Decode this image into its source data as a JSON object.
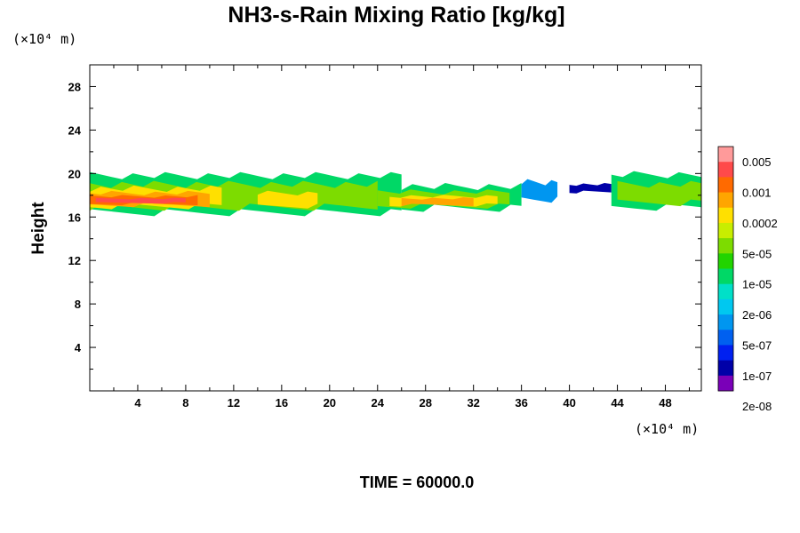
{
  "chart_data": {
    "type": "heatmap",
    "title": "NH3-s-Rain Mixing Ratio [kg/kg]",
    "ylabel": "Height",
    "x_unit_label": "(×10⁴ m)",
    "y_unit_label": "(×10⁴ m)",
    "xlim": [
      0,
      51
    ],
    "ylim": [
      0,
      30
    ],
    "x_ticks": [
      4,
      8,
      12,
      16,
      20,
      24,
      28,
      32,
      36,
      40,
      44,
      48
    ],
    "y_ticks": [
      4,
      8,
      12,
      16,
      20,
      24,
      28
    ],
    "x_tick_labels": [
      "4",
      "8",
      "12",
      "16",
      "20",
      "24",
      "28",
      "32",
      "36",
      "40",
      "44",
      "48"
    ],
    "y_tick_labels": [
      "4",
      "8",
      "12",
      "16",
      "20",
      "24",
      "28"
    ],
    "colorbar": {
      "labels": [
        "0.005",
        "0.001",
        "0.0002",
        "5e-05",
        "1e-05",
        "2e-06",
        "5e-07",
        "1e-07",
        "2e-08"
      ],
      "colors": [
        "#ff9a9a",
        "#ff4a4a",
        "#ff6a00",
        "#ffa500",
        "#ffe000",
        "#c8ee00",
        "#7ddc00",
        "#22d400",
        "#00d866",
        "#00e0c8",
        "#00c8f0",
        "#0096f0",
        "#0060f0",
        "#0020f0",
        "#0000a8",
        "#7a00b8"
      ]
    },
    "bands": [
      {
        "x0": 0,
        "x1": 26,
        "top": 19.8,
        "bottom": 16.4,
        "level": 7
      },
      {
        "x0": 26,
        "x1": 36,
        "top": 18.8,
        "bottom": 16.8,
        "level": 7
      },
      {
        "x0": 36,
        "x1": 39,
        "top": 19.2,
        "bottom": 17.6,
        "level": 4
      },
      {
        "x0": 40,
        "x1": 43.5,
        "top": 19.0,
        "bottom": 18.3,
        "level": 1
      },
      {
        "x0": 43.5,
        "x1": 51,
        "top": 19.9,
        "bottom": 16.9,
        "level": 7
      },
      {
        "x0": 0,
        "x1": 24,
        "top": 19.0,
        "bottom": 16.9,
        "level": 9
      },
      {
        "x0": 24,
        "x1": 35,
        "top": 18.3,
        "bottom": 17.0,
        "level": 9
      },
      {
        "x0": 44,
        "x1": 51,
        "top": 19.0,
        "bottom": 17.3,
        "level": 9
      },
      {
        "x0": 0,
        "x1": 11,
        "top": 18.6,
        "bottom": 17.0,
        "level": 11
      },
      {
        "x0": 14,
        "x1": 19,
        "top": 18.2,
        "bottom": 17.0,
        "level": 11
      },
      {
        "x0": 25,
        "x1": 34,
        "top": 17.9,
        "bottom": 17.1,
        "level": 11
      },
      {
        "x0": 0,
        "x1": 10,
        "top": 18.2,
        "bottom": 17.1,
        "level": 12
      },
      {
        "x0": 26,
        "x1": 32,
        "top": 17.7,
        "bottom": 17.1,
        "level": 12
      },
      {
        "x0": 0,
        "x1": 9,
        "top": 17.9,
        "bottom": 17.2,
        "level": 13
      },
      {
        "x0": 0.5,
        "x1": 8,
        "top": 17.7,
        "bottom": 17.3,
        "level": 14
      }
    ],
    "time_label": "TIME = 60000.0"
  }
}
